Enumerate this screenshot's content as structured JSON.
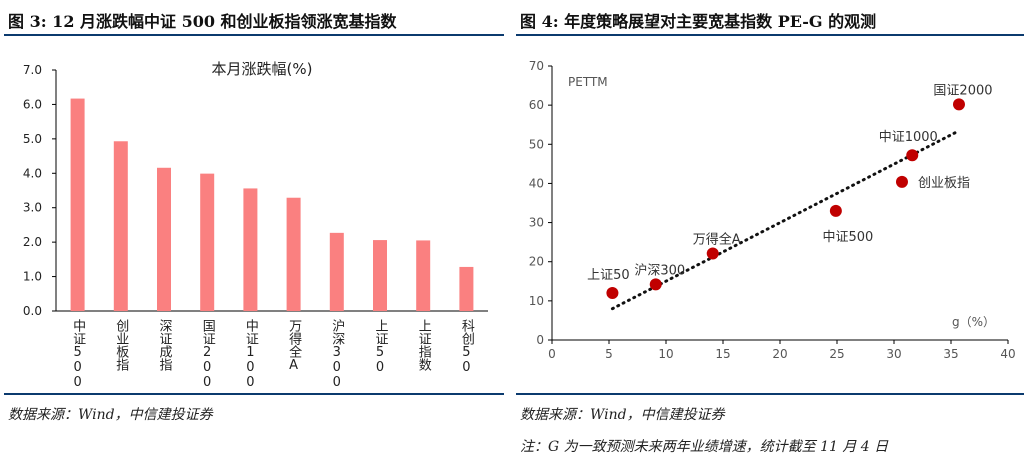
{
  "left": {
    "figure_title": "图 3: 12 月涨跌幅中证 500 和创业板指领涨宽基指数",
    "source": "数据来源：Wind，中信建投证券"
  },
  "right": {
    "figure_title": "图 4: 年度策略展望对主要宽基指数 PE-G 的观测",
    "source": "数据来源：Wind，中信建投证券",
    "note": "注：G 为一致预测未来两年业绩增速，统计截至 11 月 4 日"
  },
  "colors": {
    "bar": "#fa8080",
    "dot": "#c00000",
    "rule": "#0b3a6e",
    "trend": "#111111"
  },
  "chart_data": [
    {
      "type": "bar",
      "title": "本月涨跌幅(%)",
      "categories": [
        "中证500",
        "创业板指",
        "深证成指",
        "国证2000",
        "中证1000",
        "万得全A",
        "沪深300",
        "上证50",
        "上证指数",
        "科创50"
      ],
      "values": [
        6.17,
        4.93,
        4.16,
        3.99,
        3.56,
        3.29,
        2.27,
        2.06,
        2.05,
        1.28
      ],
      "ylim": [
        0,
        7
      ],
      "yticks": [
        "0.0",
        "1.0",
        "2.0",
        "3.0",
        "4.0",
        "5.0",
        "6.0",
        "7.0"
      ],
      "xlabel": "",
      "ylabel": ""
    },
    {
      "type": "scatter",
      "ylabel": "PETTM",
      "xlabel": "g（%）",
      "xlim": [
        0,
        40
      ],
      "ylim": [
        0,
        70
      ],
      "xticks": [
        "0",
        "5",
        "10",
        "15",
        "20",
        "25",
        "30",
        "35",
        "40"
      ],
      "yticks": [
        "0",
        "10",
        "20",
        "30",
        "40",
        "50",
        "60",
        "70"
      ],
      "points": [
        {
          "label": "上证50",
          "x": 5.3,
          "y": 12,
          "label_pos": "above-left"
        },
        {
          "label": "沪深300",
          "x": 9.1,
          "y": 14.2,
          "label_pos": "above"
        },
        {
          "label": "万得全A",
          "x": 14.1,
          "y": 22.1,
          "label_pos": "above"
        },
        {
          "label": "中证500",
          "x": 24.9,
          "y": 33,
          "label_pos": "below"
        },
        {
          "label": "创业板指",
          "x": 30.7,
          "y": 40.4,
          "label_pos": "right"
        },
        {
          "label": "中证1000",
          "x": 31.6,
          "y": 47.2,
          "label_pos": "above-left"
        },
        {
          "label": "国证2000",
          "x": 35.7,
          "y": 60.2,
          "label_pos": "above"
        }
      ],
      "trendline": {
        "x1": 5.3,
        "y1": 8,
        "x2": 35.4,
        "y2": 53
      }
    }
  ]
}
